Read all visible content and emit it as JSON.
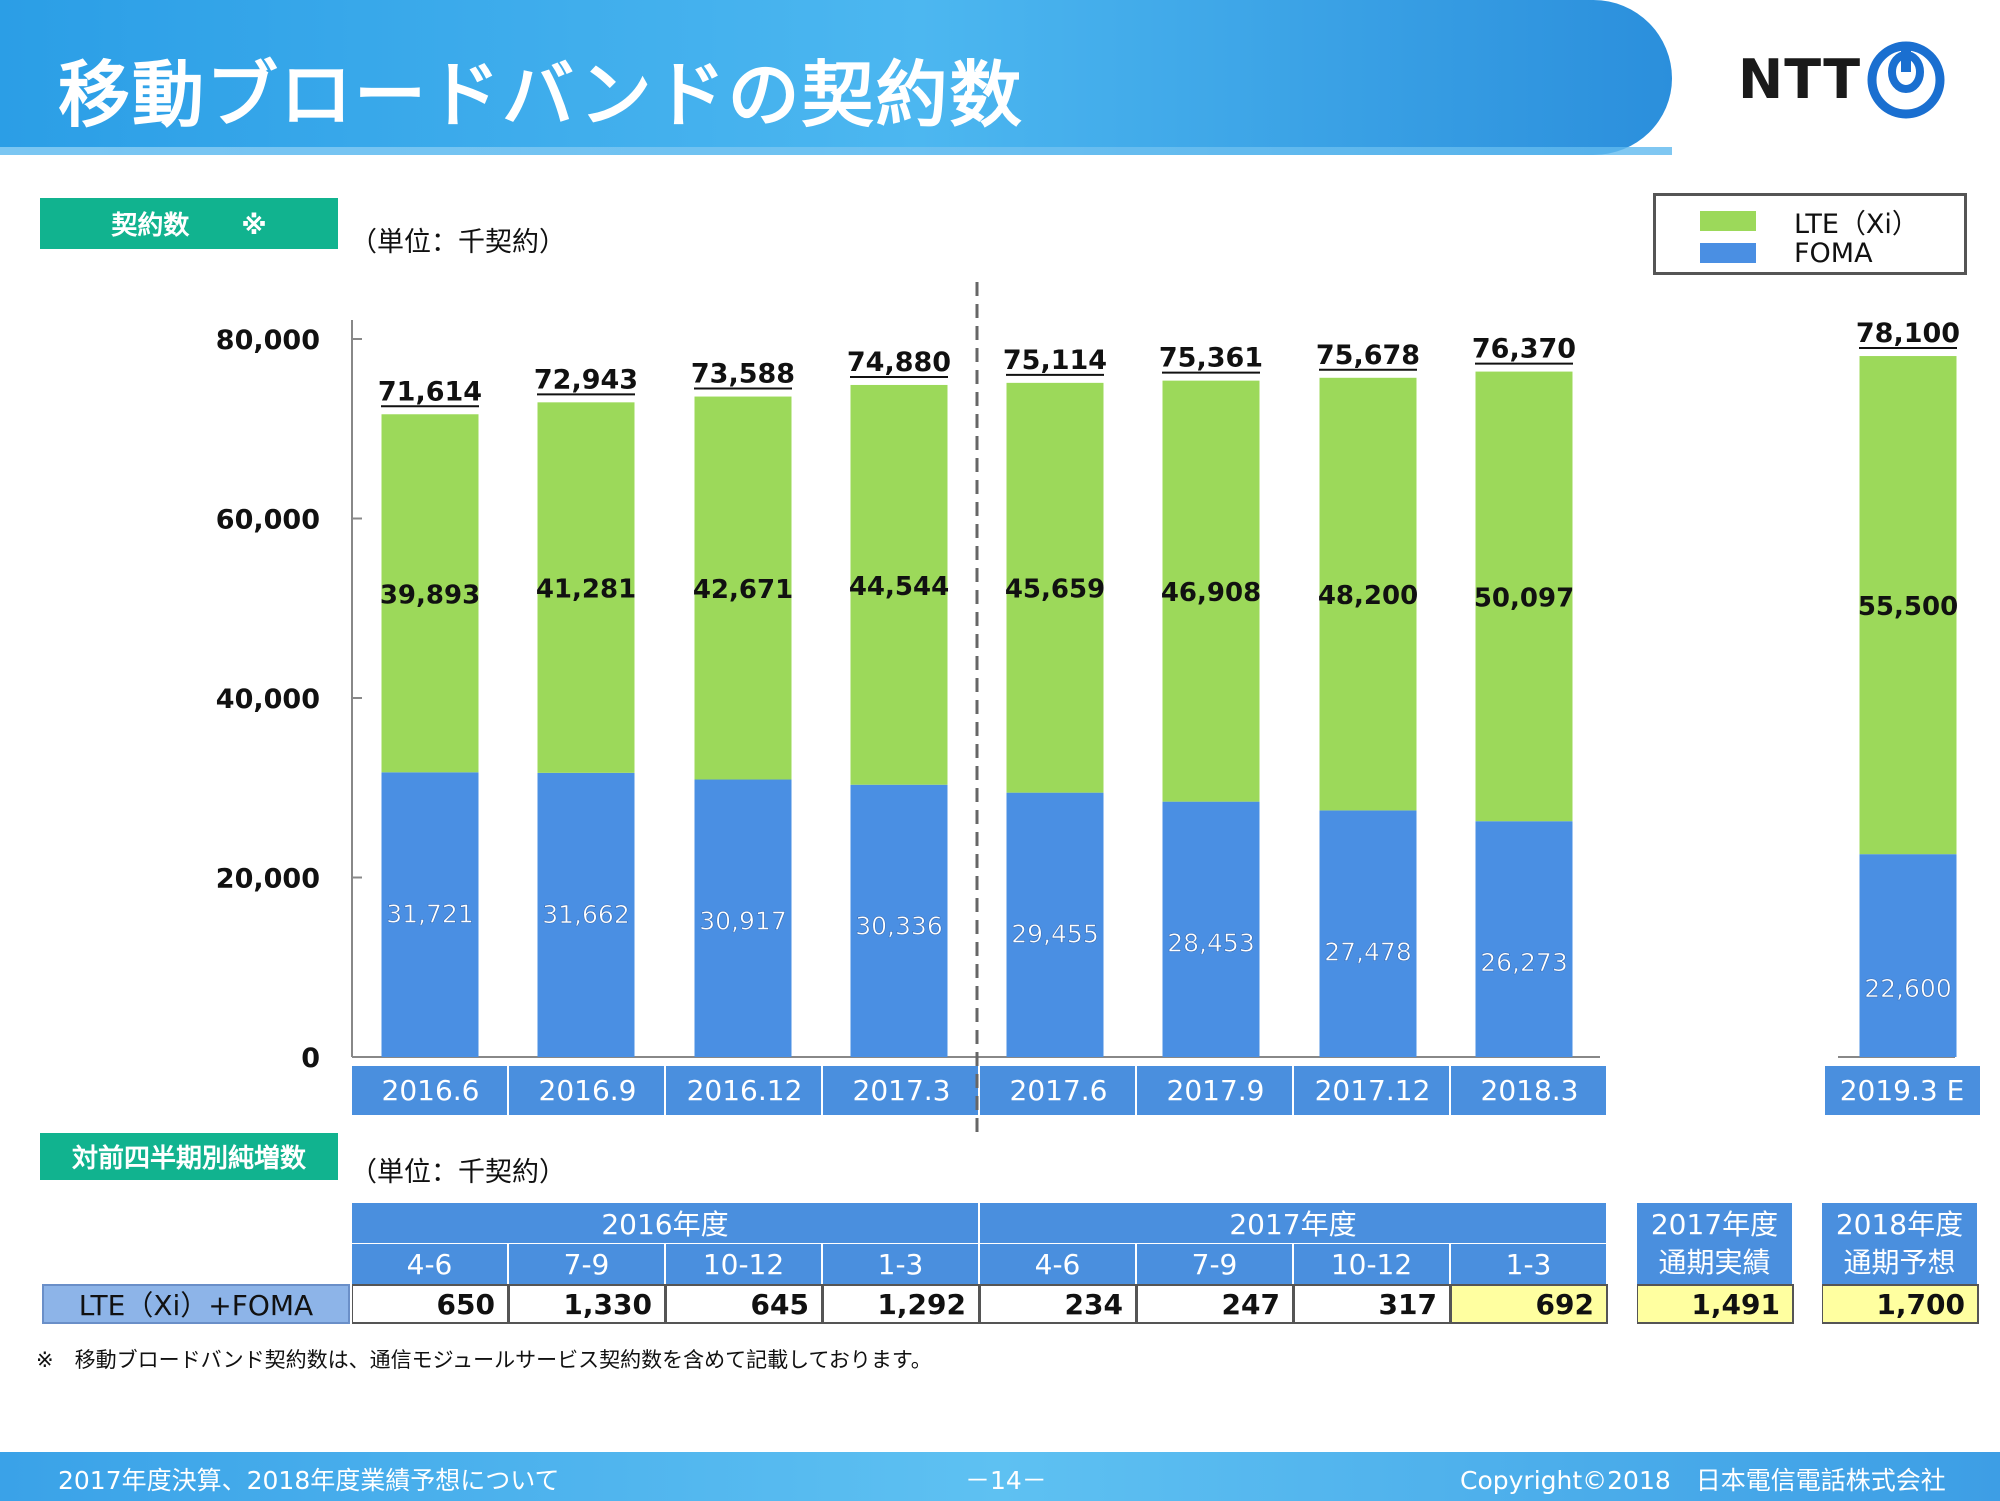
{
  "header": {
    "title": "移動ブロードバンドの契約数",
    "logo_text": "NTT"
  },
  "section1": {
    "label": "契約数　　※",
    "unit": "（単位：千契約）"
  },
  "section2": {
    "label": "対前四半期別純増数",
    "unit": "（単位：千契約）"
  },
  "legend": [
    {
      "label": "LTE（Xi）",
      "color": "#9cd95a"
    },
    {
      "label": "FOMA",
      "color": "#4a8fe3"
    }
  ],
  "chart_data": {
    "type": "bar",
    "stacked": true,
    "categories": [
      "2016.6",
      "2016.9",
      "2016.12",
      "2017.3",
      "2017.6",
      "2017.9",
      "2017.12",
      "2018.3",
      "2019.3 E"
    ],
    "series": [
      {
        "name": "FOMA",
        "values": [
          31721,
          31662,
          30917,
          30336,
          29455,
          28453,
          27478,
          26273,
          22600
        ]
      },
      {
        "name": "LTE（Xi）",
        "values": [
          39893,
          41281,
          42671,
          44544,
          45659,
          46908,
          48200,
          50097,
          55500
        ]
      }
    ],
    "totals": [
      71614,
      72943,
      73588,
      74880,
      75114,
      75361,
      75678,
      76370,
      78100
    ],
    "ylim": [
      0,
      80000
    ],
    "yticks": [
      0,
      20000,
      40000,
      60000,
      80000
    ],
    "colors": {
      "FOMA": "#4a8fe3",
      "LTE": "#9cd95a"
    }
  },
  "table": {
    "fy_headers": [
      "2016年度",
      "2017年度"
    ],
    "quarters": [
      "4-6",
      "7-9",
      "10-12",
      "1-3",
      "4-6",
      "7-9",
      "10-12",
      "1-3"
    ],
    "row_label": "LTE（Xi）+FOMA",
    "values": [
      "650",
      "1,330",
      "645",
      "1,292",
      "234",
      "247",
      "317",
      "692"
    ],
    "annual": [
      {
        "line1": "2017年度",
        "line2": "通期実績",
        "value": "1,491"
      },
      {
        "line1": "2018年度",
        "line2": "通期予想",
        "value": "1,700"
      }
    ]
  },
  "footnote": "※　移動ブロードバンド契約数は、通信モジュールサービス契約数を含めて記載しております。",
  "footer": {
    "left": "2017年度決算、2018年度業績予想について",
    "page": "－14－",
    "right": "Copyright©2018　日本電信電話株式会社"
  }
}
